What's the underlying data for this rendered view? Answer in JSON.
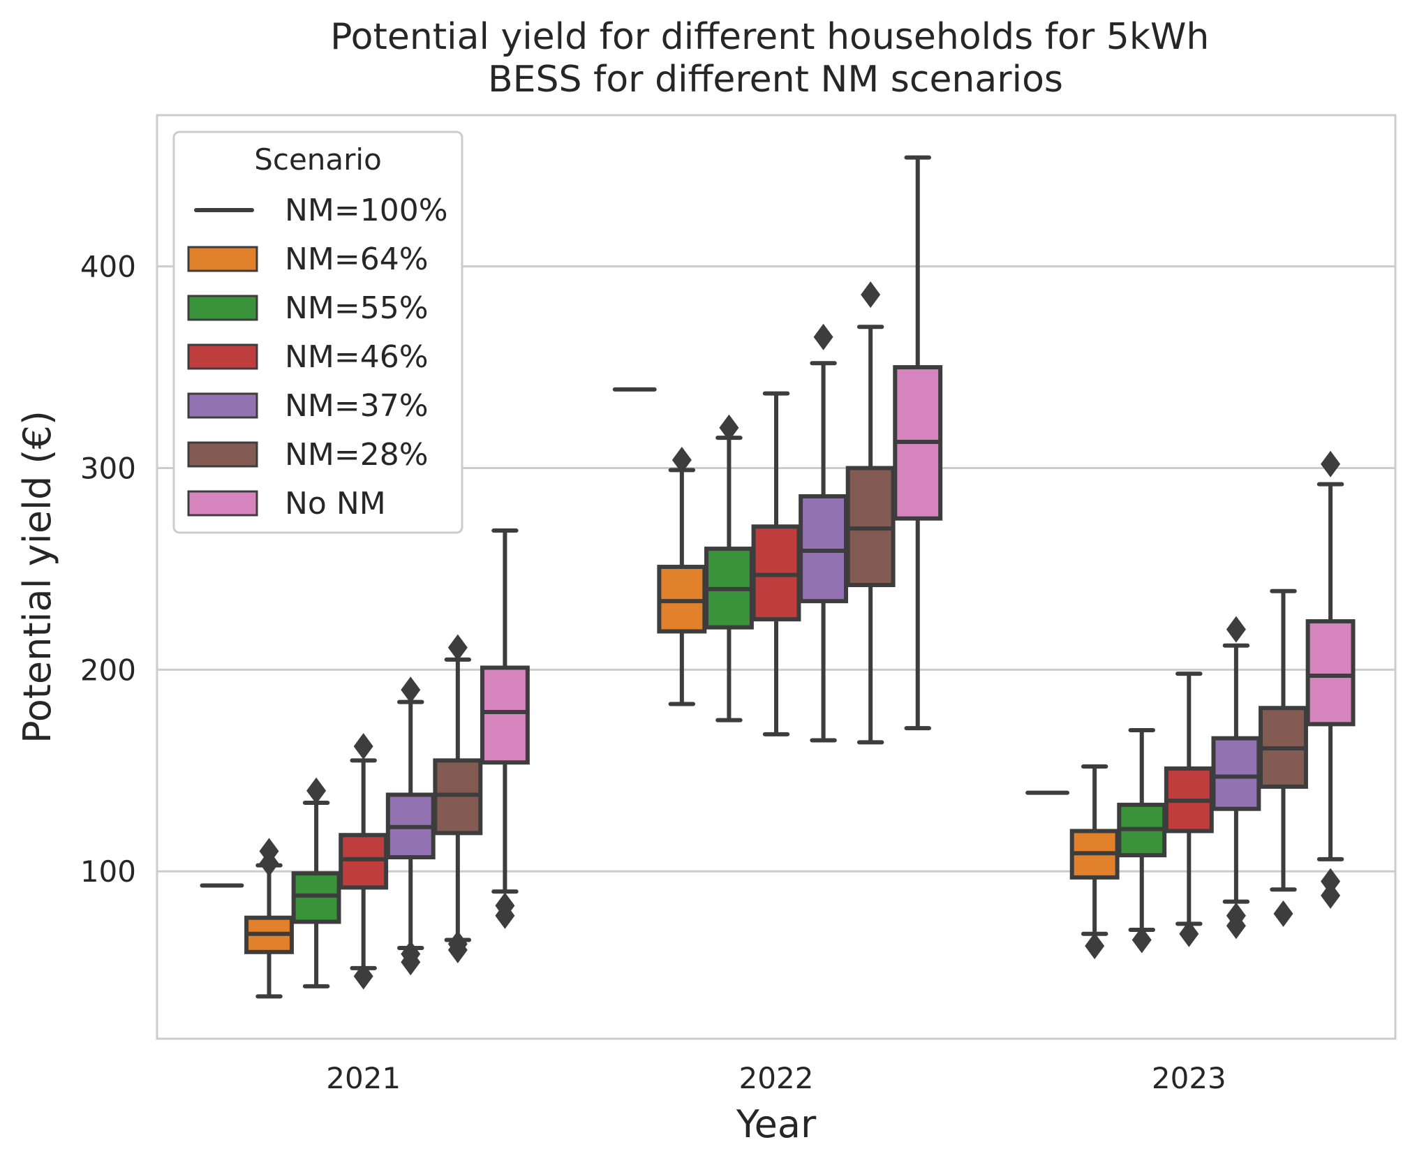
{
  "chart_data": {
    "type": "box",
    "title": "Potential yield for different households for 5kWh\nBESS for different NM scenarios",
    "xlabel": "Year",
    "ylabel": "Potential yield (€)",
    "categories": [
      "2021",
      "2022",
      "2023"
    ],
    "ylim": [
      17,
      475
    ],
    "yticks": [
      100,
      200,
      300,
      400
    ],
    "grid": "horizontal",
    "legend": {
      "title": "Scenario",
      "position": "top-left"
    },
    "series": [
      {
        "name": "NM=100%",
        "color": "#3a3a3a",
        "boxes": [
          {
            "min": 93,
            "q1": 93,
            "median": 93,
            "q3": 93,
            "max": 93,
            "outliers": []
          },
          {
            "min": 339,
            "q1": 339,
            "median": 339,
            "q3": 339,
            "max": 339,
            "outliers": []
          },
          {
            "min": 139,
            "q1": 139,
            "median": 139,
            "q3": 139,
            "max": 139,
            "outliers": []
          }
        ]
      },
      {
        "name": "NM=64%",
        "color": "#e1812c",
        "boxes": [
          {
            "min": 38,
            "q1": 60,
            "median": 69,
            "q3": 77,
            "max": 103,
            "outliers": [
              110,
              104
            ]
          },
          {
            "min": 183,
            "q1": 219,
            "median": 234,
            "q3": 251,
            "max": 299,
            "outliers": [
              304
            ]
          },
          {
            "min": 69,
            "q1": 97,
            "median": 109,
            "q3": 120,
            "max": 152,
            "outliers": [
              63
            ]
          }
        ]
      },
      {
        "name": "NM=55%",
        "color": "#3a923a",
        "boxes": [
          {
            "min": 43,
            "q1": 75,
            "median": 88,
            "q3": 99,
            "max": 134,
            "outliers": [
              140
            ]
          },
          {
            "min": 175,
            "q1": 221,
            "median": 240,
            "q3": 260,
            "max": 315,
            "outliers": [
              320
            ]
          },
          {
            "min": 71,
            "q1": 108,
            "median": 121,
            "q3": 133,
            "max": 170,
            "outliers": [
              66
            ]
          }
        ]
      },
      {
        "name": "NM=46%",
        "color": "#c03d3e",
        "boxes": [
          {
            "min": 52,
            "q1": 92,
            "median": 106,
            "q3": 118,
            "max": 155,
            "outliers": [
              162,
              48
            ]
          },
          {
            "min": 168,
            "q1": 225,
            "median": 247,
            "q3": 271,
            "max": 337,
            "outliers": []
          },
          {
            "min": 74,
            "q1": 120,
            "median": 135,
            "q3": 151,
            "max": 198,
            "outliers": [
              69
            ]
          }
        ]
      },
      {
        "name": "NM=37%",
        "color": "#9372b2",
        "boxes": [
          {
            "min": 62,
            "q1": 107,
            "median": 122,
            "q3": 138,
            "max": 184,
            "outliers": [
              190,
              59,
              55
            ]
          },
          {
            "min": 165,
            "q1": 234,
            "median": 259,
            "q3": 286,
            "max": 352,
            "outliers": [
              365
            ]
          },
          {
            "min": 85,
            "q1": 131,
            "median": 147,
            "q3": 166,
            "max": 212,
            "outliers": [
              220,
              78,
              73
            ]
          }
        ]
      },
      {
        "name": "NM=28%",
        "color": "#845b53",
        "boxes": [
          {
            "min": 66,
            "q1": 119,
            "median": 138,
            "q3": 155,
            "max": 205,
            "outliers": [
              211,
              64,
              61
            ]
          },
          {
            "min": 164,
            "q1": 242,
            "median": 270,
            "q3": 300,
            "max": 370,
            "outliers": [
              386
            ]
          },
          {
            "min": 91,
            "q1": 142,
            "median": 161,
            "q3": 181,
            "max": 239,
            "outliers": [
              79
            ]
          }
        ]
      },
      {
        "name": "No NM",
        "color": "#d684bd",
        "boxes": [
          {
            "min": 90,
            "q1": 154,
            "median": 179,
            "q3": 201,
            "max": 269,
            "outliers": [
              83,
              78
            ]
          },
          {
            "min": 171,
            "q1": 275,
            "median": 313,
            "q3": 350,
            "max": 454,
            "outliers": []
          },
          {
            "min": 106,
            "q1": 173,
            "median": 197,
            "q3": 224,
            "max": 292,
            "outliers": [
              302,
              95,
              88
            ]
          }
        ]
      }
    ]
  }
}
